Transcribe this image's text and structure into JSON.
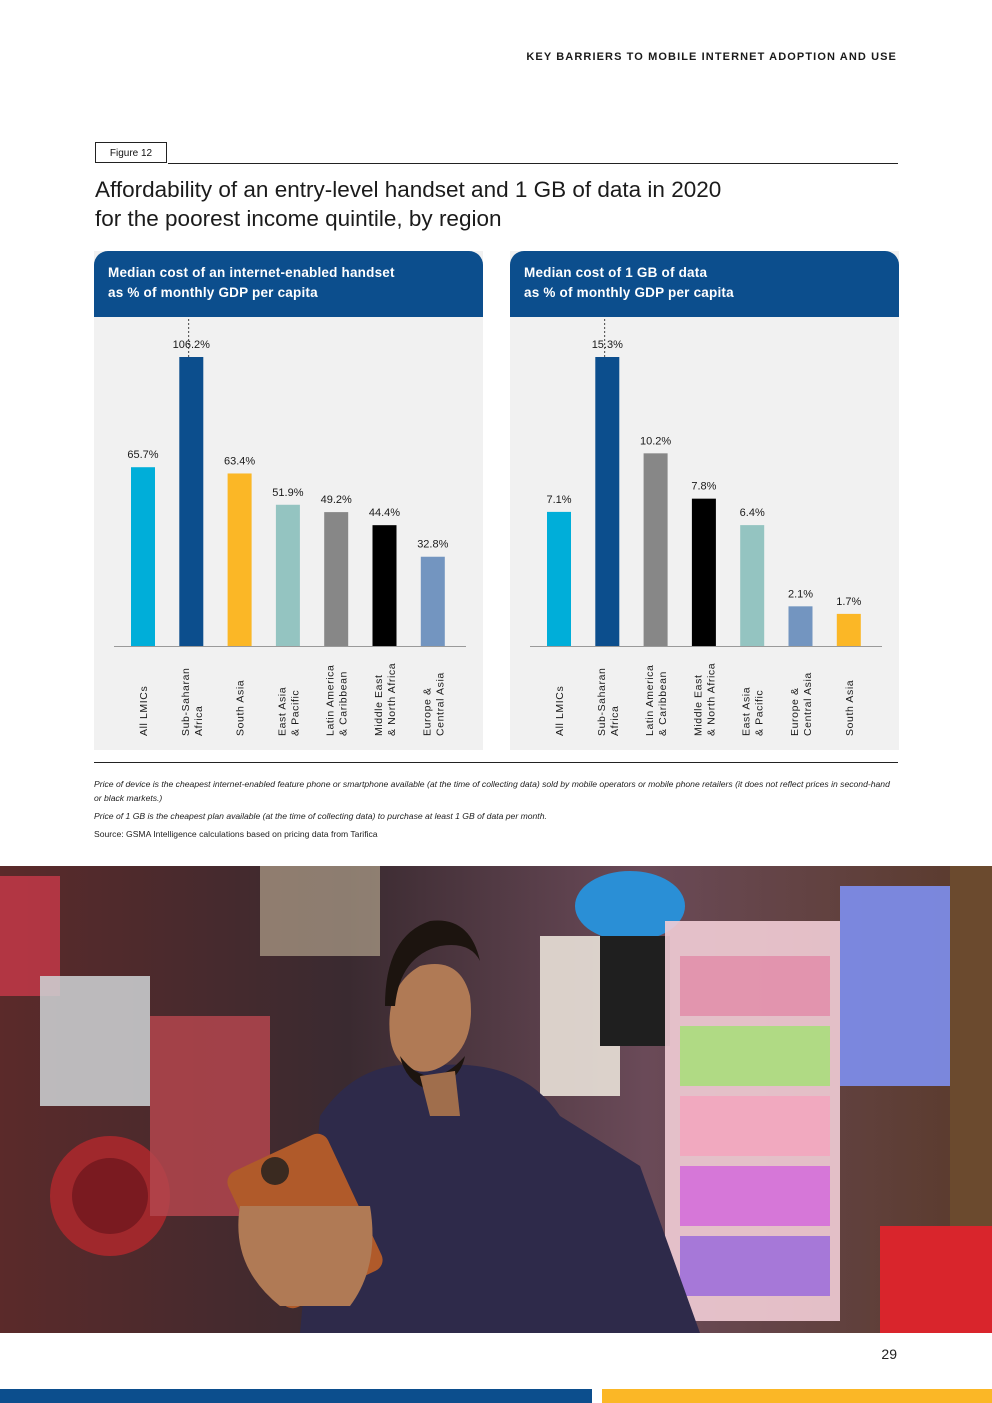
{
  "header": {
    "running_title": "KEY BARRIERS TO MOBILE INTERNET ADOPTION AND USE"
  },
  "figure": {
    "label": "Figure 12",
    "title": "Affordability of an entry-level handset and 1 GB of data in 2020\nfor the poorest income quintile, by region"
  },
  "chart_data": [
    {
      "type": "bar",
      "title_line1": "Median cost of an internet-enabled handset",
      "title_line2": "as % of monthly GDP per capita",
      "categories": [
        "All LMICs",
        "Sub-Saharan Africa",
        "South Asia",
        "East Asia & Pacific",
        "Latin America & Caribbean",
        "Middle East & North Africa",
        "Europe & Central Asia"
      ],
      "category_lines": [
        [
          "All LMICs"
        ],
        [
          "Sub-Saharan",
          "Africa"
        ],
        [
          "South Asia"
        ],
        [
          "East Asia",
          "& Pacific"
        ],
        [
          "Latin America",
          "& Caribbean"
        ],
        [
          "Middle East",
          "& North Africa"
        ],
        [
          "Europe &",
          "Central Asia"
        ]
      ],
      "values": [
        65.7,
        106.2,
        63.4,
        51.9,
        49.2,
        44.4,
        32.8
      ],
      "data_labels": [
        "65.7%",
        "106.2%",
        "63.4%",
        "51.9%",
        "49.2%",
        "44.4%",
        "32.8%"
      ],
      "colors": [
        "#00aed9",
        "#0c4e8d",
        "#fbb726",
        "#94c4c1",
        "#878787",
        "#000000",
        "#7395c0"
      ],
      "reference_line_after": "All LMICs",
      "ylim": [
        0,
        106.2
      ]
    },
    {
      "type": "bar",
      "title_line1": "Median cost of 1 GB of data",
      "title_line2": "as % of monthly GDP per capita",
      "categories": [
        "All LMICs",
        "Sub-Saharan Africa",
        "Latin America & Caribbean",
        "Middle East & North Africa",
        "East Asia & Pacific",
        "Europe & Central Asia",
        "South Asia"
      ],
      "category_lines": [
        [
          "All LMICs"
        ],
        [
          "Sub-Saharan",
          "Africa"
        ],
        [
          "Latin America",
          "& Caribbean"
        ],
        [
          "Middle East",
          "& North Africa"
        ],
        [
          "East Asia",
          "& Pacific"
        ],
        [
          "Europe &",
          "Central Asia"
        ],
        [
          "South Asia"
        ]
      ],
      "values": [
        7.1,
        15.3,
        10.2,
        7.8,
        6.4,
        2.1,
        1.7
      ],
      "data_labels": [
        "7.1%",
        "15.3%",
        "10.2%",
        "7.8%",
        "6.4%",
        "2.1%",
        "1.7%"
      ],
      "colors": [
        "#00aed9",
        "#0c4e8d",
        "#878787",
        "#000000",
        "#94c4c1",
        "#7395c0",
        "#fbb726"
      ],
      "reference_line_after": "All LMICs",
      "ylim": [
        0,
        15.3
      ]
    }
  ],
  "notes": {
    "note1": "Price of device is the cheapest internet-enabled feature phone or smartphone available (at the time of collecting data) sold by mobile operators or mobile phone retailers (it does not reflect prices in second-hand or black markets.)",
    "note2": "Price of 1 GB is the cheapest plan available (at the time of collecting data) to purchase at least 1 GB of data per month.",
    "source": "Source: GSMA Intelligence calculations based on pricing data from Tarifica"
  },
  "footer": {
    "page_number": "29"
  },
  "colors": {
    "brand_blue": "#0c4e8d",
    "brand_yellow": "#fbb726"
  }
}
